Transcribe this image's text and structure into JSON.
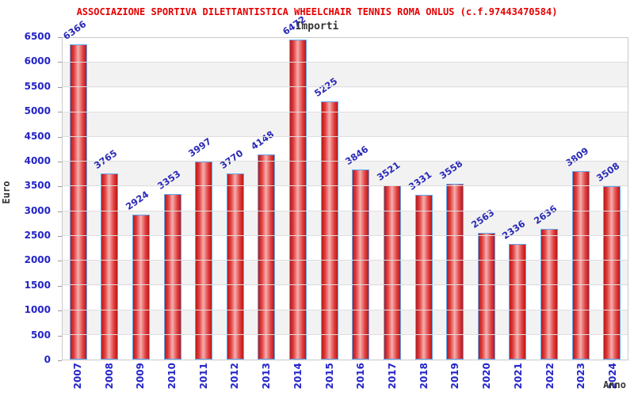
{
  "chart_data": {
    "type": "bar",
    "title": "ASSOCIAZIONE SPORTIVA DILETTANTISTICA WHEELCHAIR TENNIS ROMA ONLUS (c.f.97443470584)",
    "subtitle": "Importi",
    "xlabel": "Anno",
    "ylabel": "Euro",
    "categories": [
      "2007",
      "2008",
      "2009",
      "2010",
      "2011",
      "2012",
      "2013",
      "2014",
      "2015",
      "2016",
      "2017",
      "2018",
      "2019",
      "2020",
      "2021",
      "2022",
      "2023",
      "2024"
    ],
    "values": [
      6366,
      3765,
      2924,
      3353,
      3997,
      3770,
      4148,
      6472,
      5225,
      3846,
      3521,
      3331,
      3558,
      2563,
      2336,
      2636,
      3809,
      3508
    ],
    "ylim": [
      0,
      6500
    ],
    "yticks": [
      0,
      500,
      1000,
      1500,
      2000,
      2500,
      3000,
      3500,
      4000,
      4500,
      5000,
      5500,
      6000,
      6500
    ],
    "legend": "none",
    "grid": "horizontal",
    "colors": {
      "title": "#e60000",
      "axis_text": "#2424c8",
      "value_labels": "#2a2ab8",
      "dark_labels": "#333333",
      "bar_border": "#5fa8ee",
      "bar_dark": "#bd1717",
      "bar_light": "#f6aeae",
      "band": "#f2f2f2",
      "gridline": "#dedede"
    }
  }
}
